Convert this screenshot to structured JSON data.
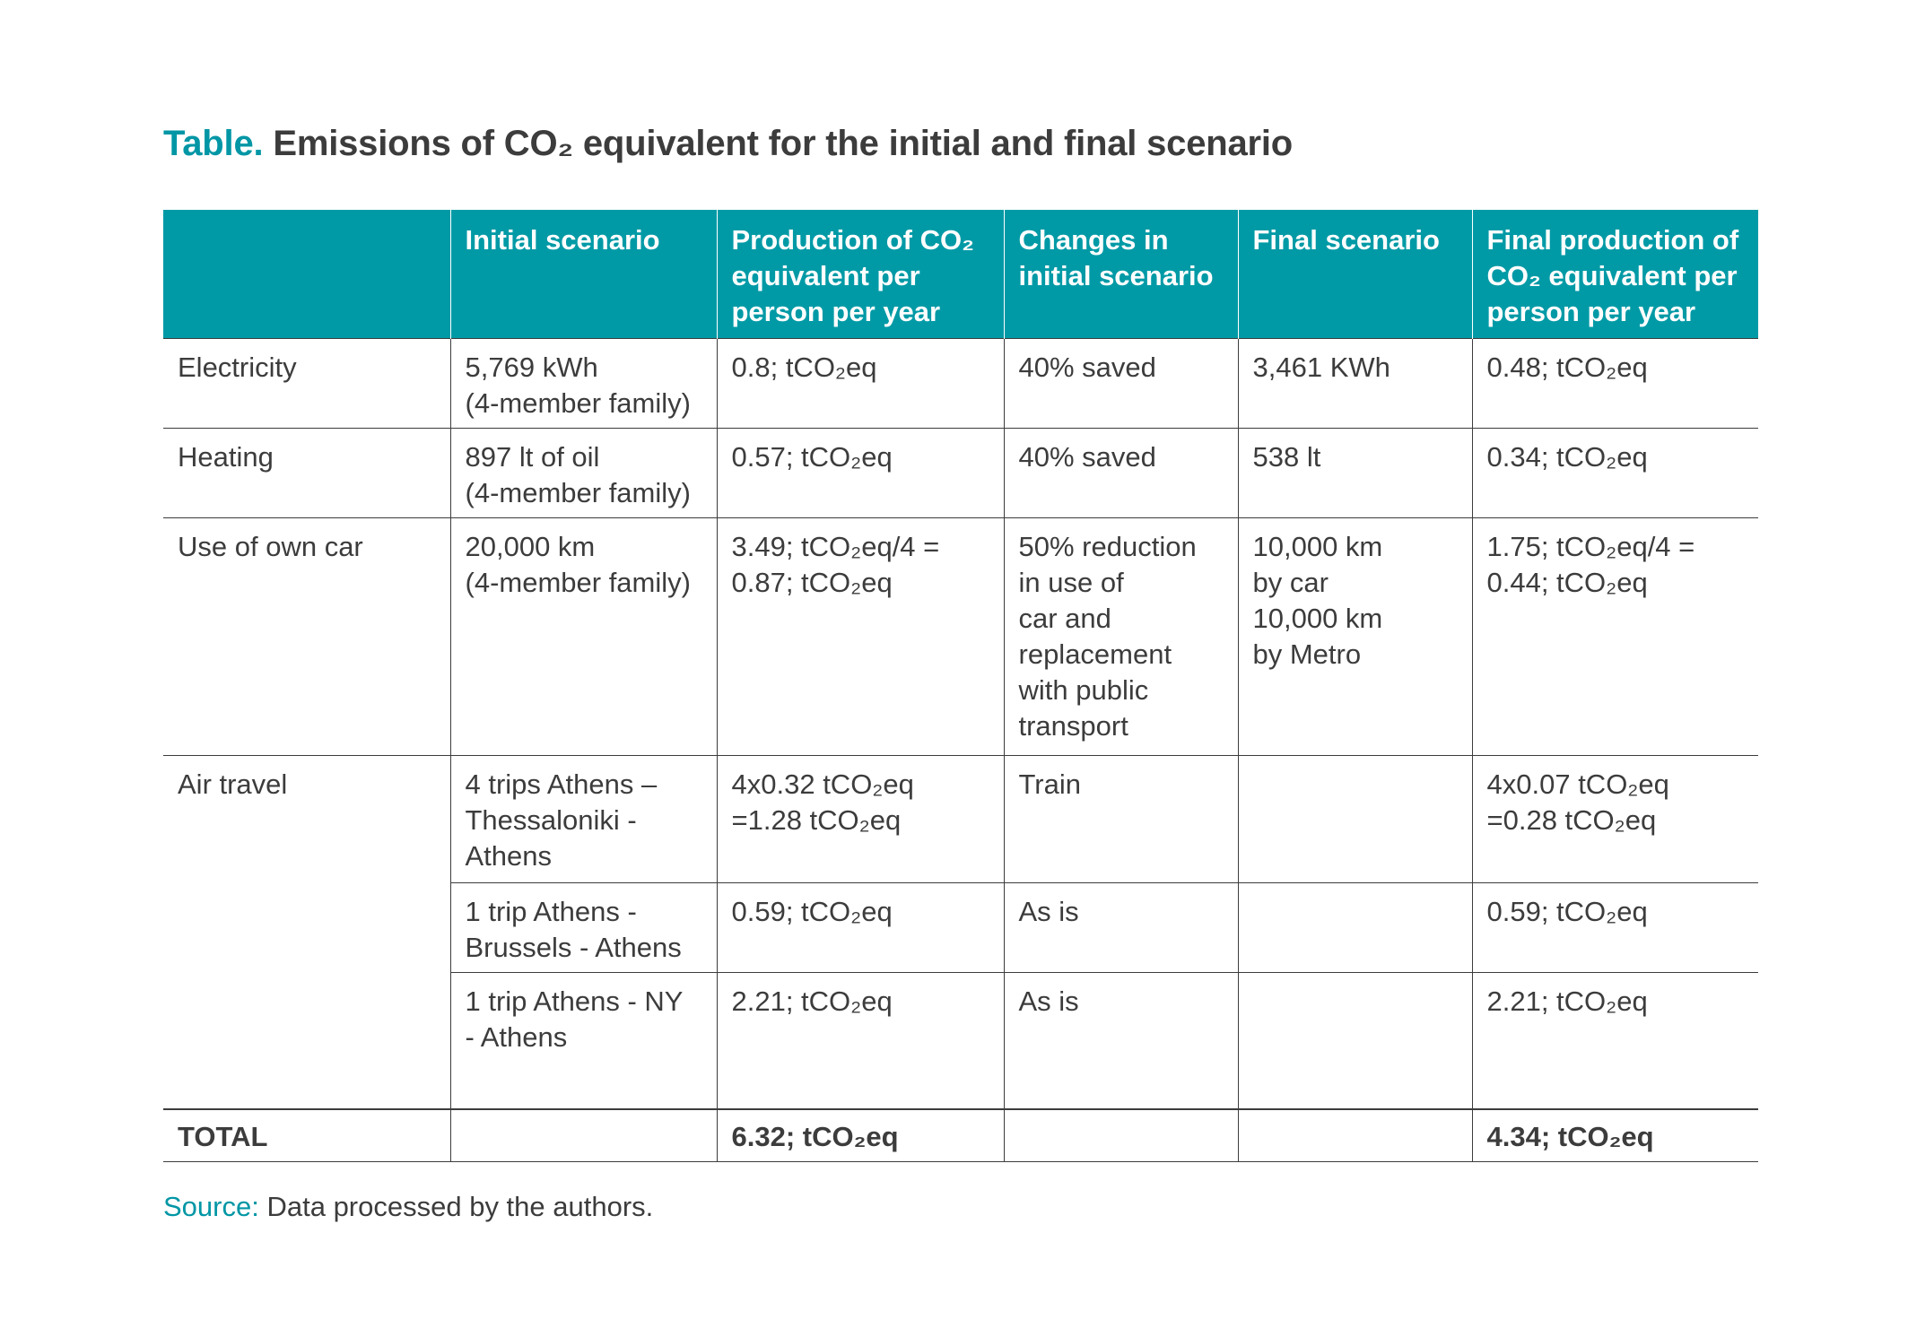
{
  "title": {
    "lead": "Table.",
    "text": "Emissions of CO₂ equivalent for the initial and final scenario"
  },
  "table": {
    "headers": [
      "",
      "Initial scenario",
      "Production of CO₂ equivalent per person per year",
      "Changes in initial scenario",
      "Final scenario",
      "Final production of CO₂ equivalent per person per year"
    ],
    "rows": [
      {
        "category": "Electricity",
        "initial": [
          "5,769 kWh",
          "(4-member family)"
        ],
        "production": [
          "0.8; tCO₂eq"
        ],
        "changes": [
          "40% saved"
        ],
        "final": [
          "3,461 KWh"
        ],
        "final_production": [
          "0.48; tCO₂eq"
        ]
      },
      {
        "category": "Heating",
        "initial": [
          "897 lt of oil",
          "(4-member family)"
        ],
        "production": [
          "0.57; tCO₂eq"
        ],
        "changes": [
          "40% saved"
        ],
        "final": [
          "538 lt"
        ],
        "final_production": [
          "0.34; tCO₂eq"
        ]
      },
      {
        "category": "Use of own car",
        "initial": [
          "20,000 km",
          "(4-member family)"
        ],
        "production": [
          "3.49; tCO₂eq/4 =",
          "0.87; tCO₂eq"
        ],
        "changes": [
          "50% reduction",
          "in use of",
          "car and",
          "replacement",
          "with public",
          "transport"
        ],
        "final": [
          "10,000 km",
          "by car",
          "10,000 km",
          "by Metro"
        ],
        "final_production": [
          "1.75; tCO₂eq/4 =",
          "0.44; tCO₂eq"
        ]
      },
      {
        "category": "Air travel",
        "initial": [
          "4 trips Athens –",
          "Thessaloniki -",
          "Athens"
        ],
        "production": [
          "4x0.32 tCO₂eq",
          "=1.28 tCO₂eq"
        ],
        "changes": [
          "Train"
        ],
        "final": [
          ""
        ],
        "final_production": [
          "4x0.07 tCO₂eq",
          "=0.28 tCO₂eq"
        ]
      },
      {
        "category": "",
        "initial": [
          "1 trip Athens -",
          "Brussels - Athens"
        ],
        "production": [
          "0.59; tCO₂eq"
        ],
        "changes": [
          "As is"
        ],
        "final": [
          ""
        ],
        "final_production": [
          "0.59; tCO₂eq"
        ]
      },
      {
        "category": "",
        "initial": [
          "1 trip Athens - NY",
          "- Athens"
        ],
        "production": [
          "2.21; tCO₂eq"
        ],
        "changes": [
          "As is"
        ],
        "final": [
          ""
        ],
        "final_production": [
          "2.21; tCO₂eq"
        ]
      }
    ],
    "total": {
      "label": "TOTAL",
      "production": "6.32; tCO₂eq",
      "final_production": "4.34; tCO₂eq"
    }
  },
  "source": {
    "lead": "Source:",
    "text": "Data processed by the authors."
  }
}
